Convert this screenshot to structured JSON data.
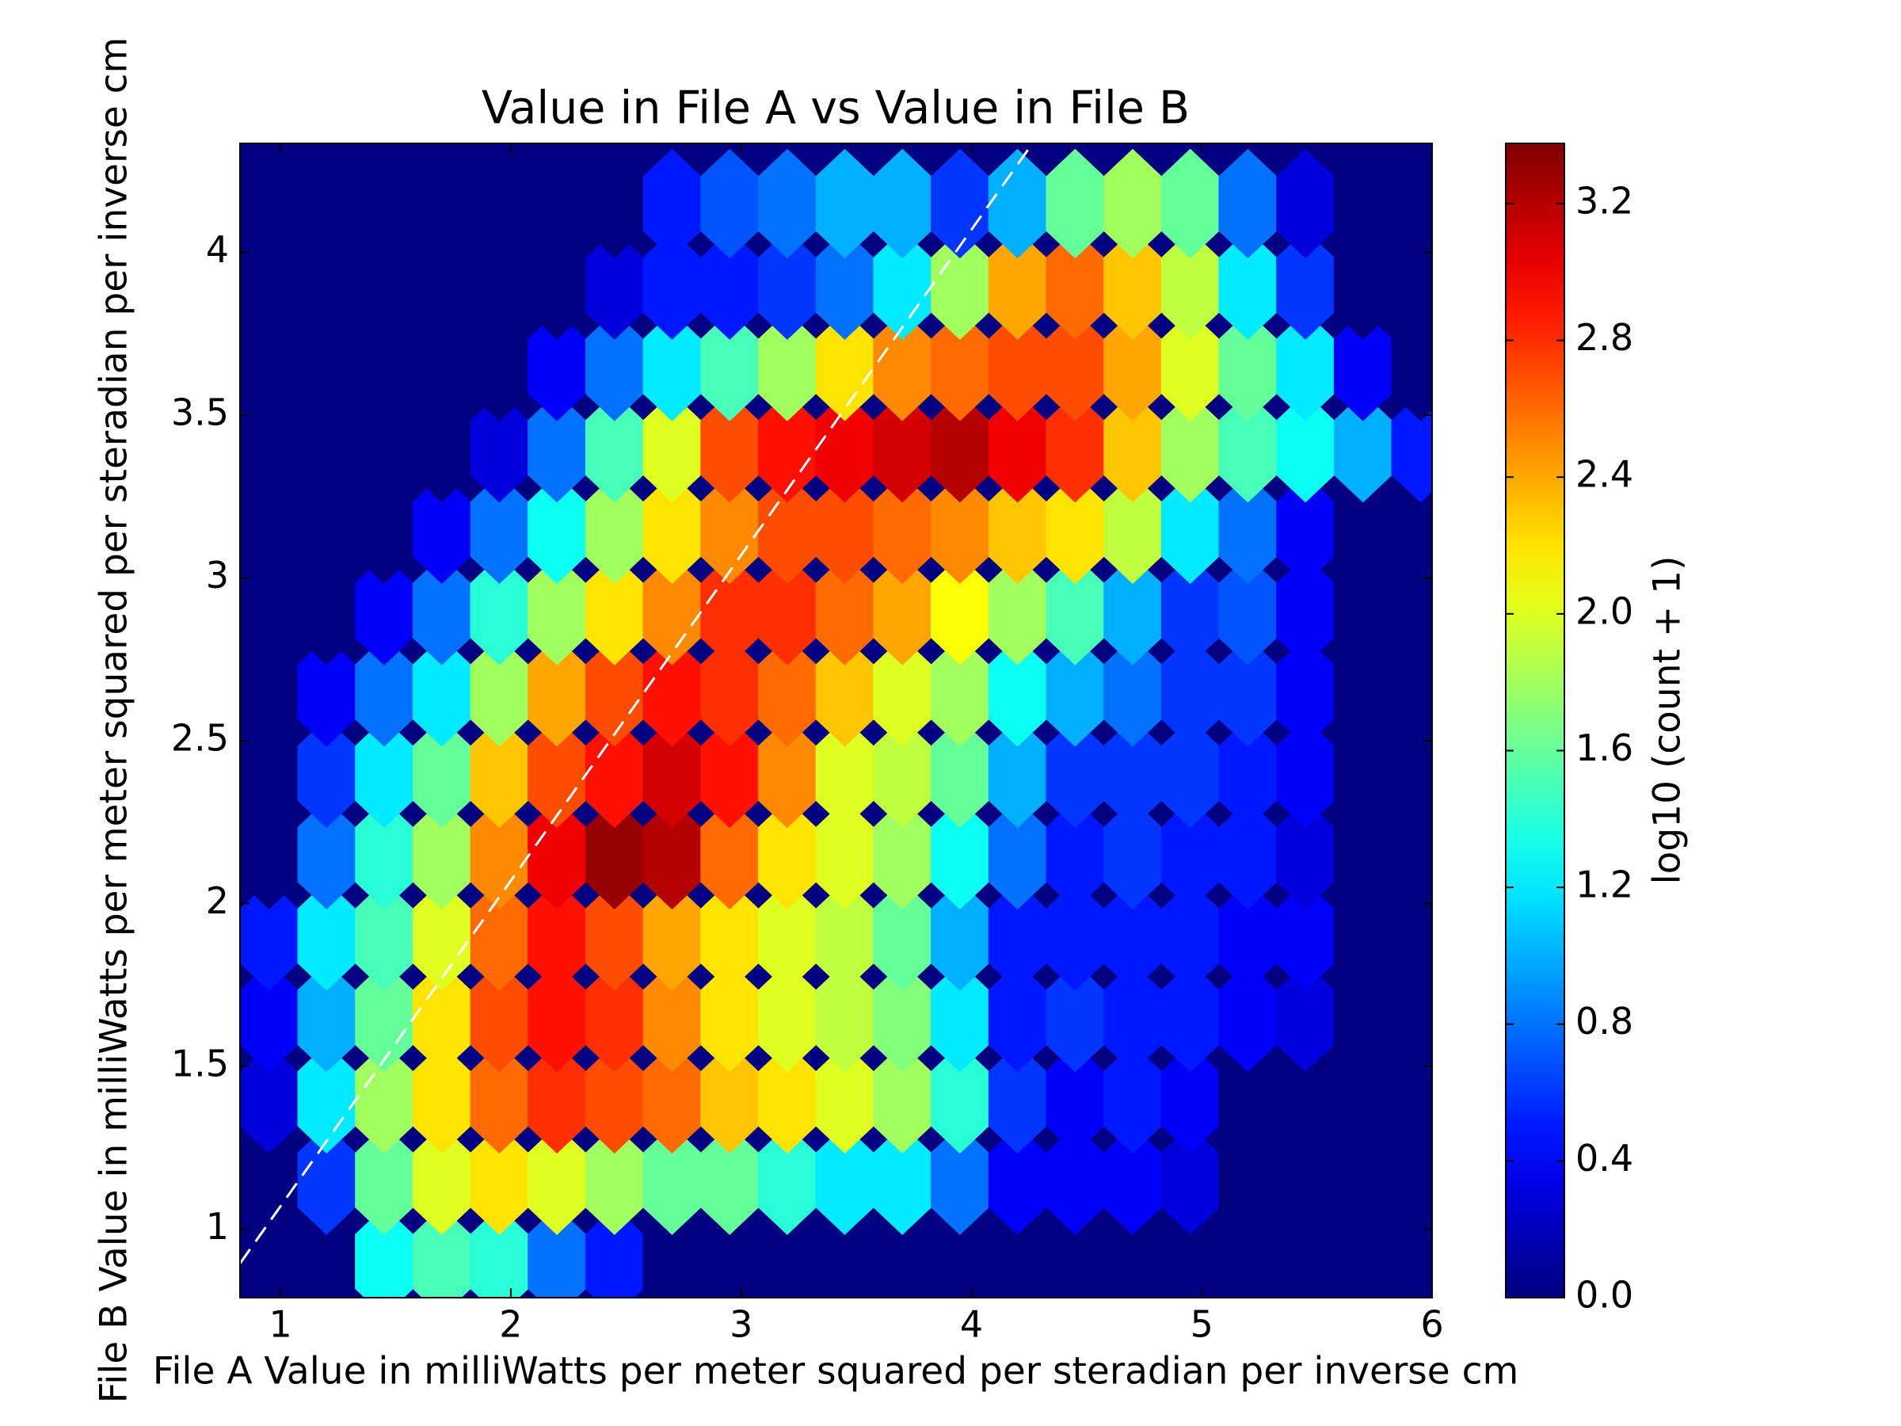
{
  "chart_data": {
    "type": "hexbin",
    "title": "Value in File A vs Value in File B",
    "x_label": "File A Value in milliWatts per meter squared per steradian per inverse cm",
    "y_label": "File B Value in milliWatts per meter squared per steradian per inverse cm",
    "colorbar_label": "log10 (count + 1)",
    "colormap": "jet",
    "x": [
      0.95,
      1.2,
      1.45,
      1.7,
      1.95,
      2.2,
      2.45,
      2.7,
      2.95,
      3.2,
      3.45,
      3.7,
      3.95,
      4.2,
      4.45,
      4.7,
      4.95,
      5.2,
      5.45,
      5.7,
      5.95
    ],
    "y": [
      0.9,
      1.15,
      1.4,
      1.65,
      1.9,
      2.15,
      2.4,
      2.65,
      2.9,
      3.15,
      3.4,
      3.65,
      3.9,
      4.15
    ],
    "values": [
      [
        0,
        0,
        1.3,
        1.5,
        1.4,
        0.8,
        0.5,
        0,
        0,
        0,
        0,
        0,
        0,
        0,
        0,
        0,
        0,
        0,
        0,
        0,
        0
      ],
      [
        0,
        0.6,
        1.6,
        2.0,
        2.2,
        2.0,
        1.8,
        1.6,
        1.6,
        1.4,
        1.2,
        1.2,
        0.8,
        0.4,
        0.4,
        0.4,
        0.3,
        0,
        0,
        0,
        0
      ],
      [
        0.3,
        1.2,
        1.8,
        2.2,
        2.6,
        2.8,
        2.7,
        2.6,
        2.3,
        2.2,
        2.0,
        1.8,
        1.4,
        0.6,
        0.4,
        0.5,
        0.4,
        0,
        0,
        0,
        0
      ],
      [
        0.4,
        1.0,
        1.6,
        2.2,
        2.7,
        2.9,
        2.8,
        2.5,
        2.2,
        2.0,
        1.9,
        1.7,
        1.2,
        0.5,
        0.6,
        0.5,
        0.5,
        0.4,
        0.3,
        0,
        0
      ],
      [
        0.5,
        1.2,
        1.5,
        2.0,
        2.6,
        2.9,
        2.7,
        2.4,
        2.2,
        2.0,
        1.9,
        1.6,
        1.0,
        0.5,
        0.5,
        0.5,
        0.5,
        0.4,
        0.4,
        0,
        0
      ],
      [
        0,
        0.8,
        1.4,
        1.8,
        2.5,
        3.0,
        3.3,
        3.2,
        2.6,
        2.2,
        2.0,
        1.8,
        1.3,
        0.8,
        0.5,
        0.6,
        0.5,
        0.5,
        0.3,
        0,
        0
      ],
      [
        0,
        0.6,
        1.2,
        1.6,
        2.3,
        2.7,
        2.9,
        3.1,
        2.9,
        2.5,
        2.0,
        1.9,
        1.6,
        1.0,
        0.6,
        0.6,
        0.6,
        0.5,
        0.4,
        0,
        0
      ],
      [
        0,
        0.4,
        0.8,
        1.2,
        1.8,
        2.4,
        2.7,
        2.9,
        2.8,
        2.6,
        2.3,
        2.0,
        1.8,
        1.3,
        1.0,
        0.8,
        0.6,
        0.6,
        0.4,
        0,
        0
      ],
      [
        0,
        0,
        0.4,
        0.8,
        1.4,
        1.8,
        2.2,
        2.5,
        2.8,
        2.8,
        2.6,
        2.4,
        2.1,
        1.8,
        1.5,
        1.0,
        0.6,
        0.7,
        0.4,
        0,
        0
      ],
      [
        0,
        0,
        0,
        0.4,
        0.8,
        1.3,
        1.8,
        2.2,
        2.5,
        2.7,
        2.7,
        2.6,
        2.5,
        2.3,
        2.2,
        1.9,
        1.2,
        0.8,
        0.4,
        0,
        0
      ],
      [
        0,
        0,
        0,
        0,
        0.3,
        0.8,
        1.5,
        2.0,
        2.7,
        2.9,
        3.0,
        3.1,
        3.2,
        3.0,
        2.8,
        2.3,
        1.8,
        1.5,
        1.3,
        1.0,
        0.5
      ],
      [
        0,
        0,
        0,
        0,
        0,
        0.4,
        0.8,
        1.2,
        1.5,
        1.8,
        2.2,
        2.5,
        2.6,
        2.7,
        2.7,
        2.4,
        2.0,
        1.6,
        1.2,
        0.4,
        0
      ],
      [
        0,
        0,
        0,
        0,
        0,
        0,
        0.3,
        0.5,
        0.5,
        0.6,
        0.8,
        1.2,
        1.8,
        2.4,
        2.6,
        2.3,
        1.9,
        1.2,
        0.6,
        0,
        0
      ],
      [
        0,
        0,
        0,
        0,
        0,
        0,
        0,
        0.5,
        0.7,
        0.8,
        1.0,
        1.0,
        0.6,
        1.0,
        1.6,
        1.8,
        1.6,
        0.8,
        0.3,
        0,
        0
      ]
    ],
    "reference_line": {
      "x": [
        0.824,
        4.265
      ],
      "y": [
        0.894,
        4.335
      ],
      "color": "#ffffff",
      "dashed": true
    },
    "xlim": [
      0.824,
      6
    ],
    "ylim": [
      0.789,
      4.335
    ],
    "xticks": [
      1,
      2,
      3,
      4,
      5,
      6
    ],
    "yticks": [
      1,
      1.5,
      2,
      2.5,
      3,
      3.5,
      4
    ],
    "clim": [
      0,
      3.376
    ],
    "cticks": [
      {
        "value": 0,
        "label": "0.0"
      },
      0.4,
      0.8,
      1.2,
      1.6,
      {
        "value": 2,
        "label": "2.0"
      },
      2.4,
      2.8,
      3.2
    ]
  }
}
